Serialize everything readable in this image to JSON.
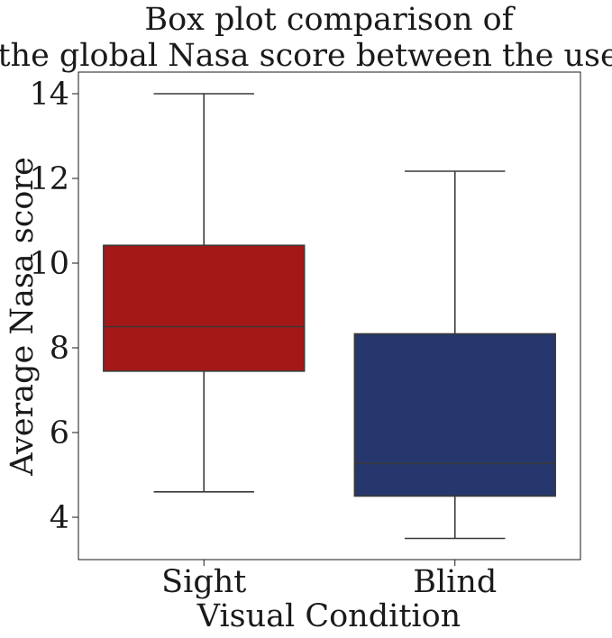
{
  "chart_data": {
    "type": "box",
    "title": [
      "Box plot comparison of",
      "the global Nasa score between the users."
    ],
    "xlabel": "Visual Condition",
    "ylabel": "Average Nasa score",
    "ylim": [
      3.0,
      14.5
    ],
    "yticks": [
      4,
      6,
      8,
      10,
      12,
      14
    ],
    "grid": false,
    "categories": [
      "Sight",
      "Blind"
    ],
    "boxes": [
      {
        "category": "Sight",
        "whisker_low": 4.6,
        "q1": 7.45,
        "median": 8.5,
        "q3": 10.42,
        "whisker_high": 14.0,
        "color": "#a51818"
      },
      {
        "category": "Blind",
        "whisker_low": 3.5,
        "q1": 4.5,
        "median": 5.27,
        "q3": 8.33,
        "whisker_high": 12.17,
        "color": "#25376c"
      }
    ]
  }
}
